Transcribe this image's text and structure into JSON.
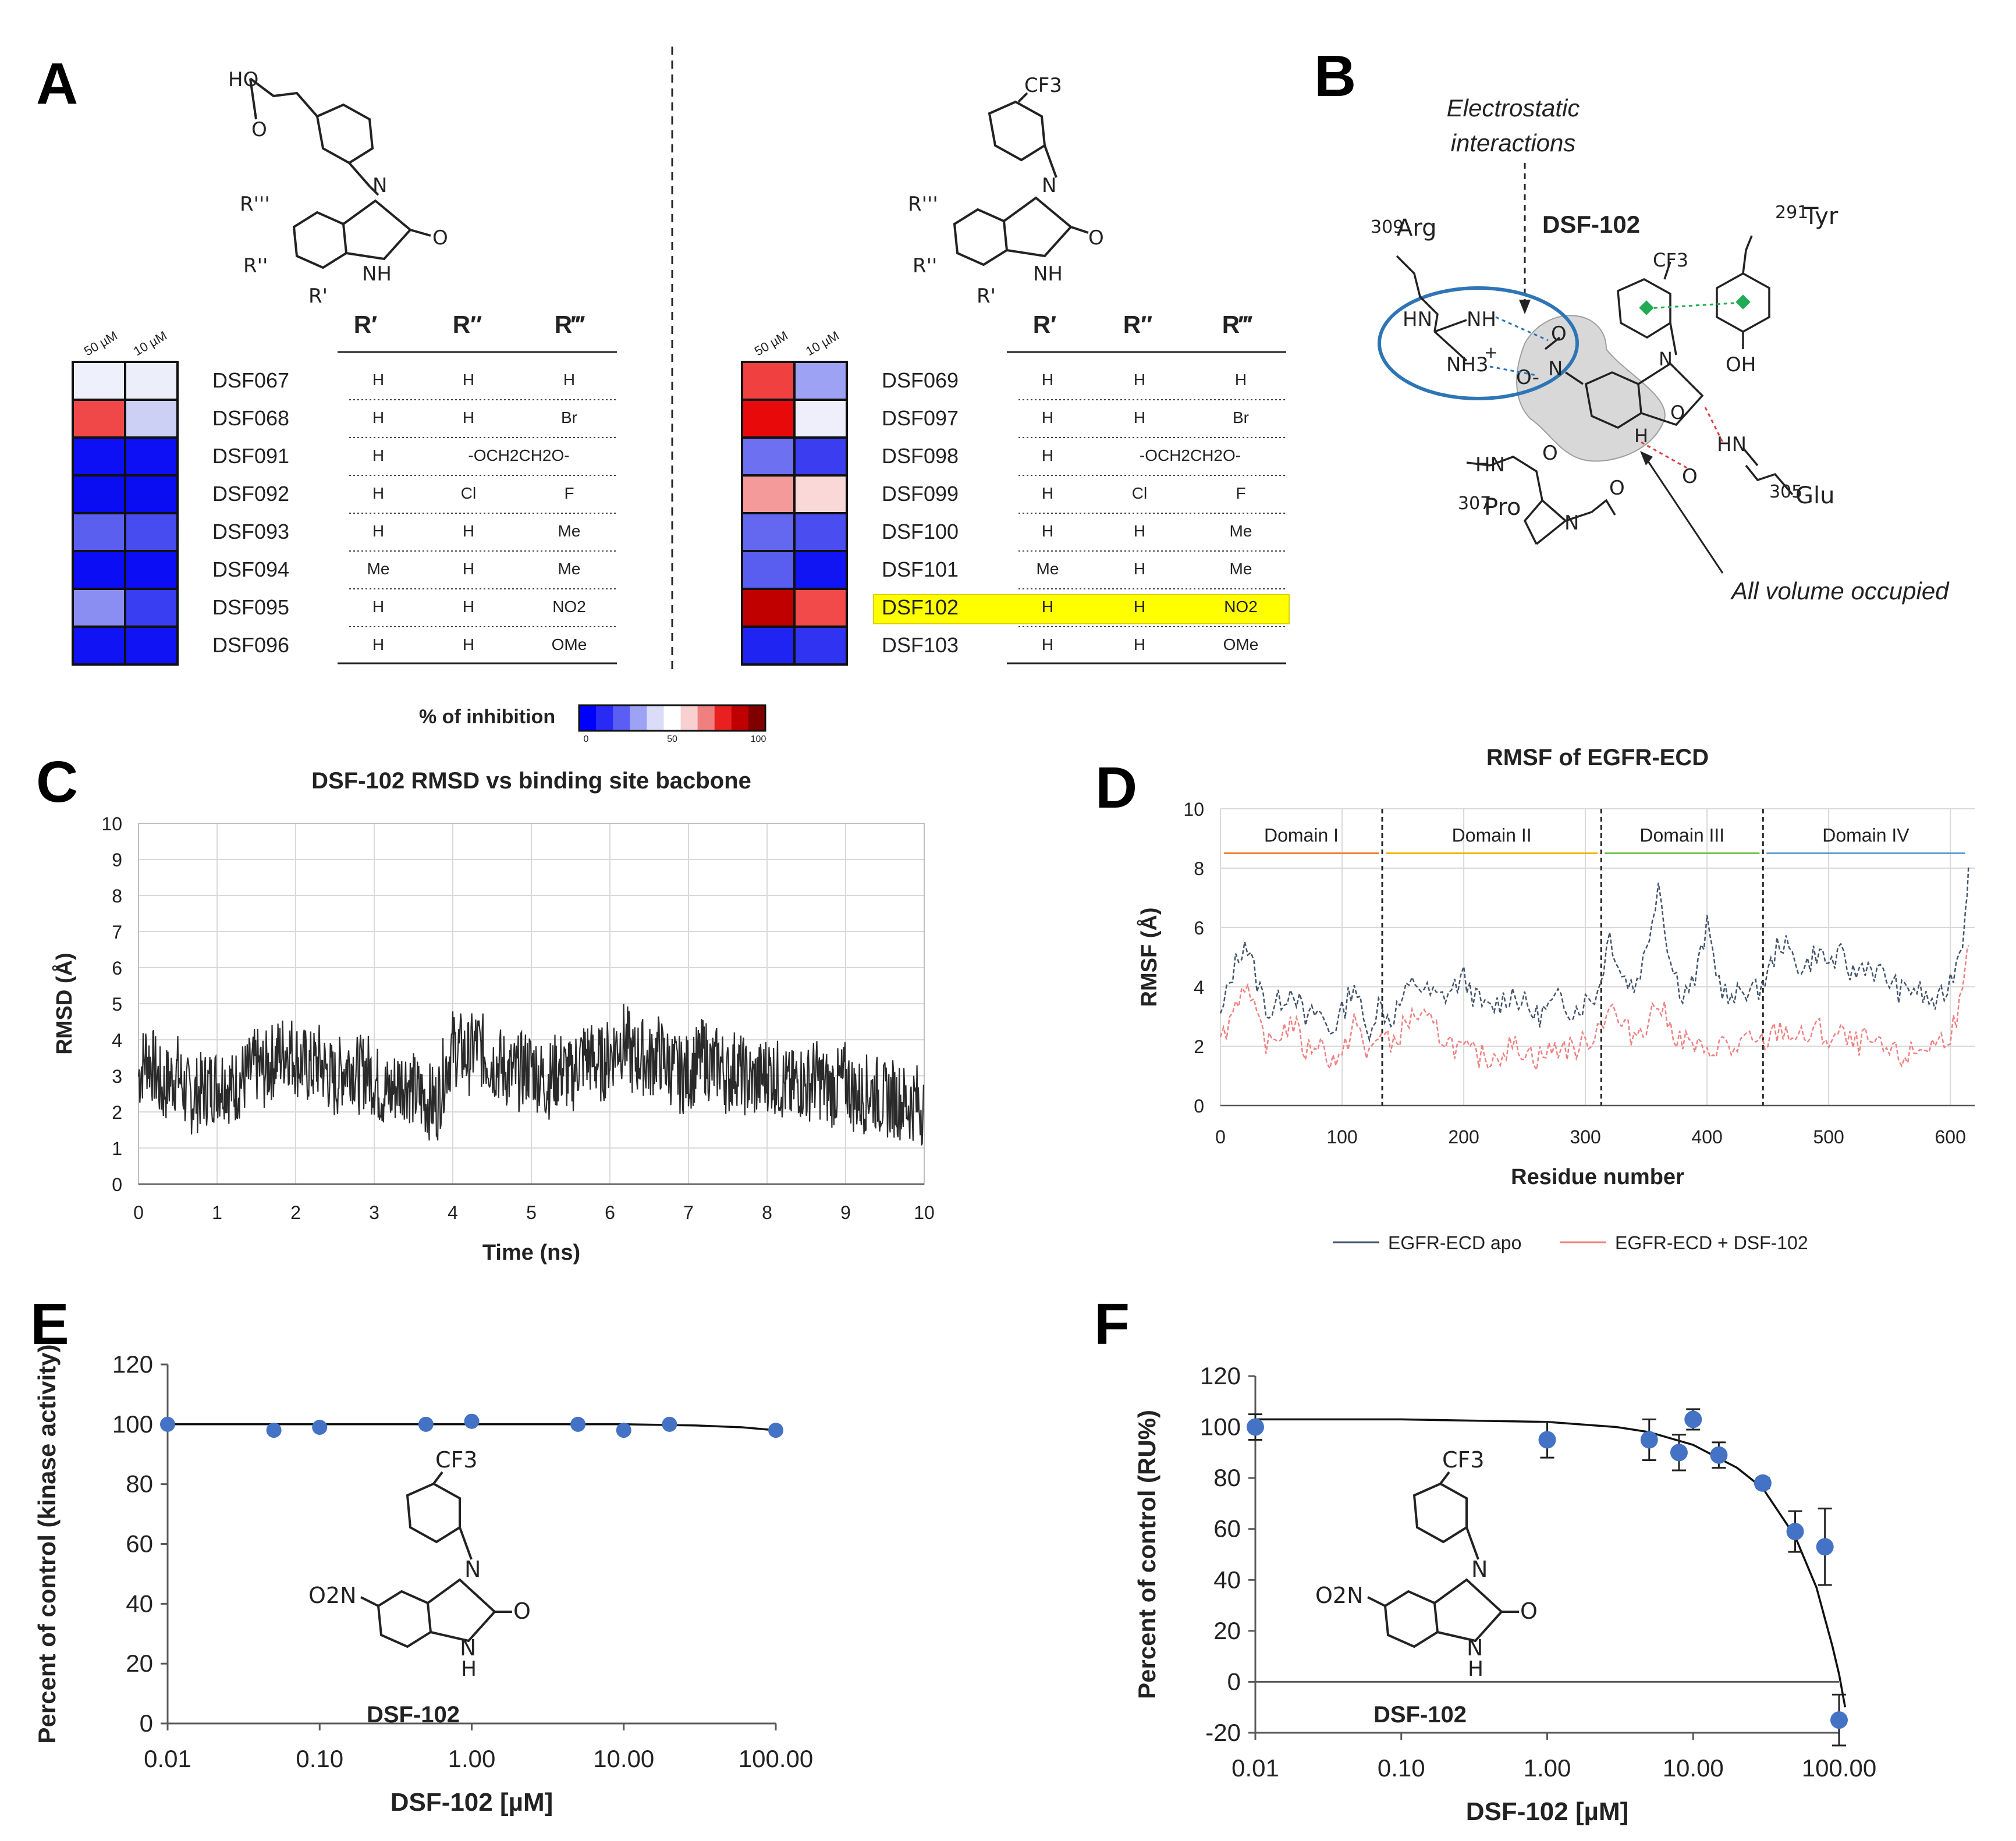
{
  "panel_labels": {
    "a": "A",
    "b": "B",
    "c": "C",
    "d": "D",
    "e": "E",
    "f": "F"
  },
  "panel_a": {
    "col_headers": [
      "50 µM",
      "10 µM"
    ],
    "r_headers": [
      "R′",
      "R″",
      "R‴"
    ],
    "left_structure": {
      "acid": "HO",
      "o": "O",
      "n": "N",
      "nh": "NH",
      "o2": "O",
      "r1": "R'",
      "r2": "R''",
      "r3": "R'''"
    },
    "right_structure": {
      "cf3": "CF3",
      "n": "N",
      "nh": "NH",
      "o": "O",
      "r1": "R'",
      "r2": "R''",
      "r3": "R'''"
    },
    "left_compounds": [
      {
        "name": "DSF067",
        "r1": "H",
        "r2": "H",
        "r3": "H",
        "h50": "#eef0fb",
        "h10": "#eceffa"
      },
      {
        "name": "DSF068",
        "r1": "H",
        "r2": "H",
        "r3": "Br",
        "h50": "#f04848",
        "h10": "#cdd0f5"
      },
      {
        "name": "DSF091",
        "r1": "H",
        "r2": "-OCH2CH2O-",
        "r3": "",
        "h50": "#0d0ff5",
        "h10": "#0d0ff5"
      },
      {
        "name": "DSF092",
        "r1": "H",
        "r2": "Cl",
        "r3": "F",
        "h50": "#0a0cf2",
        "h10": "#0a0cf2"
      },
      {
        "name": "DSF093",
        "r1": "H",
        "r2": "H",
        "r3": "Me",
        "h50": "#5a5ff0",
        "h10": "#474cf0"
      },
      {
        "name": "DSF094",
        "r1": "Me",
        "r2": "H",
        "r3": "Me",
        "h50": "#0b0df4",
        "h10": "#0b0df4"
      },
      {
        "name": "DSF095",
        "r1": "H",
        "r2": "H",
        "r3": "NO2",
        "h50": "#8a8ef3",
        "h10": "#3a3ef2"
      },
      {
        "name": "DSF096",
        "r1": "H",
        "r2": "H",
        "r3": "OMe",
        "h50": "#1013f3",
        "h10": "#1013f3"
      }
    ],
    "right_compounds": [
      {
        "name": "DSF069",
        "r1": "H",
        "r2": "H",
        "r3": "H",
        "h50": "#f04040",
        "h10": "#9ea2f4",
        "highlight": false
      },
      {
        "name": "DSF097",
        "r1": "H",
        "r2": "H",
        "r3": "Br",
        "h50": "#e80a0a",
        "h10": "#eeeffb",
        "highlight": false
      },
      {
        "name": "DSF098",
        "r1": "H",
        "r2": "-OCH2CH2O-",
        "r3": "",
        "h50": "#6c70f1",
        "h10": "#3a3ef0",
        "highlight": false
      },
      {
        "name": "DSF099",
        "r1": "H",
        "r2": "Cl",
        "r3": "F",
        "h50": "#f59a9a",
        "h10": "#fad8d8",
        "highlight": false
      },
      {
        "name": "DSF100",
        "r1": "H",
        "r2": "H",
        "r3": "Me",
        "h50": "#6468f1",
        "h10": "#4a4ef0",
        "highlight": false
      },
      {
        "name": "DSF101",
        "r1": "Me",
        "r2": "H",
        "r3": "Me",
        "h50": "#5a5ef0",
        "h10": "#1215f3",
        "highlight": false
      },
      {
        "name": "DSF102",
        "r1": "H",
        "r2": "H",
        "r3": "NO2",
        "h50": "#c00000",
        "h10": "#f24a4a",
        "highlight": true
      },
      {
        "name": "DSF103",
        "r1": "H",
        "r2": "H",
        "r3": "OMe",
        "h50": "#2024f2",
        "h10": "#3034f2",
        "highlight": false
      }
    ],
    "colorbar": {
      "label": "% of inhibition",
      "ticks": [
        "0",
        "50",
        "100"
      ],
      "colors": [
        "#0000ff",
        "#2a2af5",
        "#5a5ef2",
        "#9ea2f4",
        "#dadcf8",
        "#ffffff",
        "#f8d0d0",
        "#f08080",
        "#e82020",
        "#c00000",
        "#800000"
      ]
    }
  },
  "panel_b": {
    "title": "DSF-102",
    "electrostatic": "Electrostatic",
    "interactions": "interactions",
    "all_volume": "All volume occupied",
    "residues": {
      "arg_num": "309",
      "arg": "Arg",
      "tyr_num": "291",
      "tyr": "Tyr",
      "pro_num": "307",
      "pro": "Pro",
      "glu_num": "305",
      "glu": "Glu"
    },
    "atoms": {
      "hn": "HN",
      "nh": "NH",
      "nh3": "NH3",
      "plus": "+",
      "no2_o": "O",
      "no2_n": "N",
      "o_minus": "O-",
      "cf3": "CF3",
      "n": "N",
      "oh": "OH",
      "o": "O",
      "h": "H",
      "hn2": "HN",
      "o2": "O",
      "hn3": "HN",
      "o3": "O",
      "n2": "N",
      "o4": "O"
    }
  },
  "chart_data": [
    {
      "id": "C",
      "type": "line",
      "title": "DSF-102 RMSD vs binding site bacbone",
      "xlabel": "Time (ns)",
      "ylabel": "RMSD (Å)",
      "xlim": [
        0,
        10
      ],
      "ylim": [
        0,
        10
      ],
      "xticks": [
        0,
        1,
        2,
        3,
        4,
        5,
        6,
        7,
        8,
        9,
        10
      ],
      "yticks": [
        0,
        1,
        2,
        3,
        4,
        5,
        6,
        7,
        8,
        9,
        10
      ],
      "grid": true,
      "series": [
        {
          "name": "RMSD",
          "color": "#2a2a2a",
          "x": [
            0,
            0.1,
            0.2,
            0.3,
            0.4,
            0.5,
            0.6,
            0.7,
            0.8,
            0.9,
            1.0,
            1.1,
            1.2,
            1.3,
            1.4,
            1.5,
            1.6,
            1.7,
            1.8,
            1.9,
            2.0,
            2.1,
            2.2,
            2.3,
            2.4,
            2.5,
            2.6,
            2.7,
            2.8,
            2.9,
            3.0,
            3.1,
            3.2,
            3.3,
            3.4,
            3.5,
            3.6,
            3.7,
            3.8,
            3.9,
            4.0,
            4.1,
            4.2,
            4.3,
            4.4,
            4.5,
            4.6,
            4.7,
            4.8,
            4.9,
            5.0,
            5.1,
            5.2,
            5.3,
            5.4,
            5.5,
            5.6,
            5.7,
            5.8,
            5.9,
            6.0,
            6.1,
            6.2,
            6.3,
            6.4,
            6.5,
            6.6,
            6.7,
            6.8,
            6.9,
            7.0,
            7.1,
            7.2,
            7.3,
            7.4,
            7.5,
            7.6,
            7.7,
            7.8,
            7.9,
            8.0,
            8.1,
            8.2,
            8.3,
            8.4,
            8.5,
            8.6,
            8.7,
            8.8,
            8.9,
            9.0,
            9.1,
            9.2,
            9.3,
            9.4,
            9.5,
            9.6,
            9.7,
            9.8,
            9.9,
            10.0
          ],
          "y": [
            3.0,
            3.6,
            3.2,
            2.6,
            2.9,
            3.1,
            2.5,
            2.4,
            2.6,
            2.7,
            2.8,
            2.9,
            2.6,
            2.9,
            3.0,
            3.3,
            3.1,
            3.4,
            3.6,
            3.8,
            3.5,
            3.3,
            3.2,
            3.4,
            3.1,
            2.8,
            3.2,
            3.4,
            3.0,
            3.2,
            2.9,
            2.6,
            2.5,
            2.8,
            2.9,
            2.6,
            2.4,
            2.3,
            2.2,
            3.2,
            3.8,
            3.7,
            3.5,
            3.9,
            3.6,
            3.4,
            3.3,
            3.1,
            3.0,
            3.2,
            3.3,
            3.0,
            2.8,
            3.1,
            3.2,
            2.9,
            3.4,
            3.6,
            3.4,
            3.3,
            3.6,
            3.9,
            4.0,
            3.4,
            3.6,
            3.3,
            3.7,
            3.4,
            3.2,
            3.0,
            3.1,
            3.3,
            3.6,
            3.2,
            3.4,
            2.9,
            3.3,
            3.0,
            2.8,
            2.9,
            3.1,
            3.0,
            2.8,
            2.6,
            2.9,
            2.7,
            3.0,
            2.8,
            2.6,
            2.7,
            2.9,
            2.5,
            2.4,
            2.6,
            2.5,
            2.3,
            2.4,
            2.3,
            2.2,
            2.3,
            2.1
          ]
        }
      ]
    },
    {
      "id": "D",
      "type": "line",
      "title": "RMSF of EGFR-ECD",
      "xlabel": "Residue number",
      "ylabel": "RMSF (Å)",
      "xlim": [
        0,
        620
      ],
      "ylim": [
        0,
        10
      ],
      "xticks": [
        0,
        100,
        200,
        300,
        400,
        500,
        600
      ],
      "yticks": [
        0,
        2,
        4,
        6,
        8,
        10
      ],
      "grid": true,
      "domains": [
        {
          "label": "Domain I",
          "start": 0,
          "end": 133,
          "color": "#ed7d31"
        },
        {
          "label": "Domain II",
          "start": 133,
          "end": 313,
          "color": "#f4b400"
        },
        {
          "label": "Domain III",
          "start": 313,
          "end": 446,
          "color": "#6cc24a"
        },
        {
          "label": "Domain IV",
          "start": 446,
          "end": 615,
          "color": "#5b9bd5"
        }
      ],
      "legend": [
        "EGFR-ECD apo",
        "EGFR-ECD + DSF-102"
      ],
      "series": [
        {
          "name": "EGFR-ECD apo",
          "color": "#44546a",
          "x": [
            0,
            10,
            20,
            30,
            40,
            50,
            60,
            70,
            80,
            90,
            100,
            110,
            120,
            130,
            140,
            150,
            160,
            170,
            180,
            190,
            200,
            210,
            220,
            230,
            240,
            250,
            260,
            270,
            280,
            290,
            300,
            310,
            320,
            330,
            340,
            350,
            360,
            370,
            380,
            390,
            400,
            410,
            420,
            430,
            440,
            450,
            460,
            470,
            480,
            490,
            500,
            510,
            520,
            530,
            540,
            550,
            560,
            570,
            580,
            590,
            600,
            610,
            615
          ],
          "y": [
            2.9,
            4.5,
            5.6,
            4.2,
            3.1,
            3.6,
            4.0,
            2.8,
            3.2,
            2.5,
            3.1,
            4.2,
            2.4,
            3.4,
            2.9,
            3.6,
            4.2,
            3.8,
            3.6,
            3.9,
            4.3,
            3.6,
            3.2,
            3.5,
            3.8,
            3.4,
            3.0,
            3.3,
            3.6,
            3.2,
            3.5,
            3.8,
            5.8,
            4.4,
            4.0,
            5.2,
            7.6,
            4.8,
            3.8,
            4.2,
            6.0,
            4.2,
            3.4,
            4.0,
            3.8,
            4.4,
            5.6,
            5.0,
            4.6,
            5.2,
            4.8,
            5.0,
            4.4,
            4.8,
            4.5,
            4.2,
            3.8,
            4.0,
            3.6,
            3.4,
            4.2,
            5.6,
            8.1
          ]
        },
        {
          "name": "EGFR-ECD + DSF-102",
          "color": "#f08080",
          "x": [
            0,
            10,
            20,
            30,
            40,
            50,
            60,
            70,
            80,
            90,
            100,
            110,
            120,
            130,
            140,
            150,
            160,
            170,
            180,
            190,
            200,
            210,
            220,
            230,
            240,
            250,
            260,
            270,
            280,
            290,
            300,
            310,
            320,
            330,
            340,
            350,
            360,
            370,
            380,
            390,
            400,
            410,
            420,
            430,
            440,
            450,
            460,
            470,
            480,
            490,
            500,
            510,
            520,
            530,
            540,
            550,
            560,
            570,
            580,
            590,
            600,
            610,
            615
          ],
          "y": [
            2.1,
            3.2,
            4.2,
            2.8,
            2.0,
            2.5,
            2.8,
            1.8,
            2.2,
            1.6,
            1.5,
            3.0,
            1.6,
            2.5,
            2.0,
            2.6,
            3.1,
            2.8,
            2.4,
            2.1,
            1.8,
            1.7,
            1.6,
            1.8,
            2.0,
            1.9,
            1.6,
            1.8,
            2.0,
            1.9,
            2.1,
            2.6,
            3.4,
            2.6,
            2.4,
            2.8,
            3.5,
            2.6,
            2.2,
            2.0,
            1.6,
            2.2,
            1.8,
            2.2,
            2.0,
            2.2,
            2.6,
            2.4,
            2.2,
            2.6,
            2.2,
            2.4,
            2.0,
            2.2,
            1.9,
            1.8,
            1.6,
            1.8,
            2.0,
            2.1,
            2.5,
            3.6,
            5.4
          ]
        }
      ]
    },
    {
      "id": "E",
      "type": "scatter",
      "title": "",
      "xlabel": "DSF-102 [µM]",
      "ylabel": "Percent of control (kinase activity)",
      "xscale": "log",
      "xlim": [
        0.01,
        100
      ],
      "ylim": [
        0,
        120
      ],
      "xticks": [
        0.01,
        0.1,
        1,
        10,
        100
      ],
      "xticklabels": [
        "0.01",
        "0.10",
        "1.00",
        "10.00",
        "100.00"
      ],
      "yticks": [
        0,
        20,
        40,
        60,
        80,
        100,
        120
      ],
      "x": [
        0.01,
        0.05,
        0.1,
        0.5,
        1,
        5,
        10,
        20,
        100
      ],
      "y": [
        100,
        98,
        99,
        100,
        101,
        100,
        98,
        100,
        98
      ],
      "fit": {
        "x": [
          0.01,
          0.1,
          1,
          10,
          30,
          60,
          100
        ],
        "y": [
          100,
          100,
          100,
          100,
          99.6,
          99,
          98
        ]
      },
      "color": "#4472c4",
      "compound": {
        "cf3": "CF3",
        "no2": "O2N",
        "n": "N",
        "nh": "N",
        "h": "H",
        "o": "O",
        "name": "DSF-102"
      }
    },
    {
      "id": "F",
      "type": "scatter",
      "title": "",
      "xlabel": "DSF-102 [µM]",
      "ylabel": "Percent of control (RU%)",
      "xscale": "log",
      "xlim": [
        0.01,
        100
      ],
      "ylim": [
        -20,
        120
      ],
      "xticks": [
        0.01,
        0.1,
        1,
        10,
        100
      ],
      "xticklabels": [
        "0.01",
        "0.10",
        "1.00",
        "10.00",
        "100.00"
      ],
      "yticks": [
        -20,
        0,
        20,
        40,
        60,
        80,
        100,
        120
      ],
      "x": [
        0.01,
        1,
        5,
        8,
        10,
        15,
        30,
        50,
        80,
        100
      ],
      "y": [
        100,
        95,
        95,
        90,
        103,
        89,
        78,
        59,
        53,
        -15
      ],
      "err": [
        5,
        7,
        8,
        7,
        4,
        5,
        2,
        8,
        15,
        10
      ],
      "fit": {
        "x": [
          0.01,
          0.1,
          1,
          3,
          5,
          10,
          20,
          30,
          50,
          70,
          90,
          100,
          110
        ],
        "y": [
          103,
          103,
          102,
          100,
          98,
          93,
          84,
          76,
          57,
          37,
          14,
          3,
          -10
        ]
      },
      "color": "#4472c4",
      "compound": {
        "cf3": "CF3",
        "no2": "O2N",
        "n": "N",
        "nh": "N",
        "h": "H",
        "o": "O",
        "name": "DSF-102"
      }
    }
  ]
}
